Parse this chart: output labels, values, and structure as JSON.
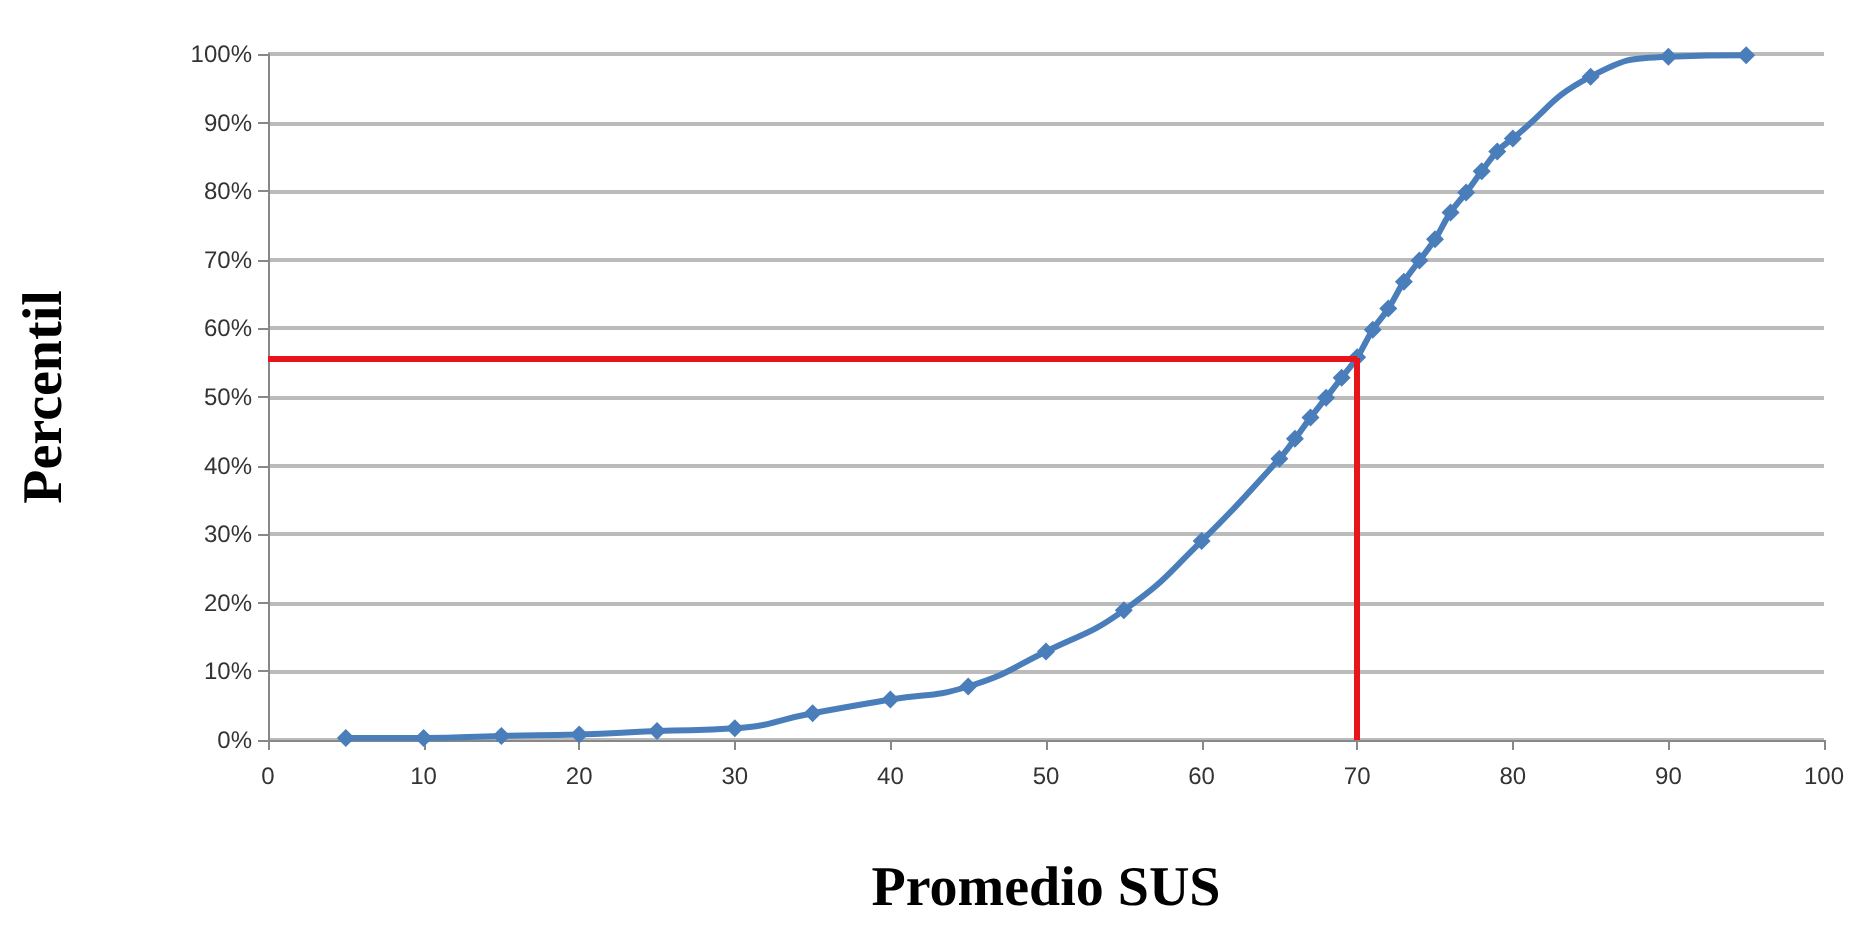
{
  "chart_data": {
    "type": "line",
    "xlabel": "Promedio SUS",
    "ylabel": "Percentil",
    "x": [
      5,
      10,
      15,
      20,
      25,
      30,
      35,
      40,
      45,
      50,
      55,
      60,
      65,
      66,
      67,
      68,
      69,
      70,
      71,
      72,
      73,
      74,
      75,
      76,
      77,
      78,
      79,
      80,
      85,
      90,
      95
    ],
    "series": [
      {
        "color": "#4a7ebb",
        "values": [
          0.3,
          0.3,
          0.6,
          0.8,
          1.3,
          1.7,
          3.9,
          5.9,
          7.8,
          12.9,
          18.9,
          29,
          41,
          43.9,
          47,
          49.9,
          52.8,
          55.8,
          59.8,
          62.9,
          66.8,
          69.9,
          73,
          76.9,
          79.8,
          82.9,
          85.8,
          87.7,
          96.7,
          99.6,
          99.8
        ]
      }
    ],
    "xlim": [
      0,
      100
    ],
    "xticks": [
      0,
      10,
      20,
      30,
      40,
      50,
      60,
      70,
      80,
      90,
      100
    ],
    "ylim": [
      0,
      100
    ],
    "yticks": [
      {
        "value": 0,
        "label": "0%"
      },
      {
        "value": 10,
        "label": "10%"
      },
      {
        "value": 20,
        "label": "20%"
      },
      {
        "value": 30,
        "label": "30%"
      },
      {
        "value": 40,
        "label": "40%"
      },
      {
        "value": 50,
        "label": "50%"
      },
      {
        "value": 60,
        "label": "60%"
      },
      {
        "value": 70,
        "label": "70%"
      },
      {
        "value": 80,
        "label": "80%"
      },
      {
        "value": 90,
        "label": "90%"
      },
      {
        "value": 100,
        "label": "100%"
      }
    ],
    "ref_lines": [
      {
        "axis": "x",
        "value": 70,
        "color": "#e8141c"
      },
      {
        "axis": "y",
        "value": 55.7,
        "color": "#e8141c"
      }
    ],
    "grid": "y",
    "marker": "diamond",
    "line_style": "solid"
  }
}
